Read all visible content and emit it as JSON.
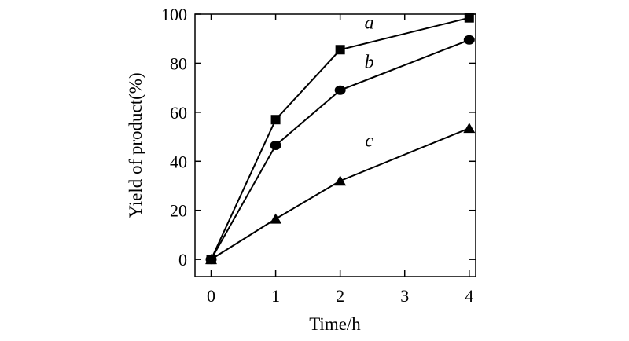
{
  "chart_data": {
    "type": "line",
    "xlabel": "Time/h",
    "ylabel": "Yield of product(%)",
    "x": [
      0,
      1,
      2,
      4
    ],
    "xlim": [
      -0.25,
      4.1
    ],
    "ylim": [
      -7,
      100
    ],
    "xticks": [
      0,
      1,
      2,
      3,
      4
    ],
    "yticks": [
      0,
      20,
      40,
      60,
      80,
      100
    ],
    "grid": false,
    "series": [
      {
        "name": "a",
        "marker": "square",
        "values": [
          0,
          57,
          85.5,
          98.5
        ]
      },
      {
        "name": "b",
        "marker": "circle",
        "values": [
          0,
          46.5,
          69,
          89.5
        ]
      },
      {
        "name": "c",
        "marker": "triangle",
        "values": [
          0,
          16.5,
          32,
          53.5
        ]
      }
    ]
  }
}
